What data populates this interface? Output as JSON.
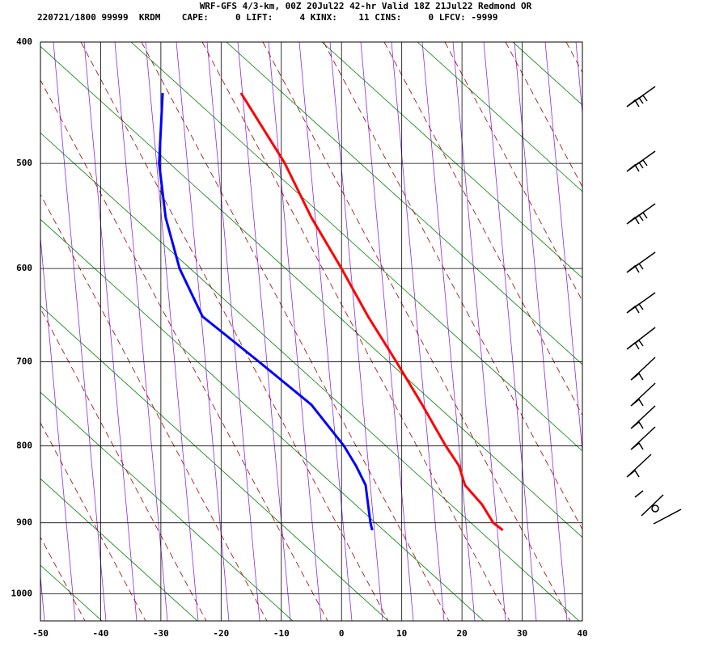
{
  "chart_data": {
    "type": "skewt",
    "title": "WRF-GFS 4/3-km, 00Z 20Jul22 42-hr Valid 18Z 21Jul22 Redmond OR",
    "subtitle": "220721/1800 99999  KRDM    CAPE:     0 LIFT:     4 KINX:    11 CINS:     0 LFCV: -9999",
    "x": [
      440,
      500,
      550,
      600,
      650,
      700,
      750,
      800,
      825,
      850,
      875,
      900,
      910
    ],
    "series": [
      {
        "color": "#ff0000",
        "values": [
          -16.7,
          -9.4,
          -5.0,
          0.0,
          4.4,
          9.1,
          13.4,
          17.3,
          19.5,
          20.5,
          23.3,
          25.2,
          26.8
        ]
      },
      {
        "color": "#0000ff",
        "values": [
          -29.7,
          -30.3,
          -29.2,
          -26.9,
          -23.1,
          -13.7,
          -5.0,
          0.4,
          2.4,
          4.0,
          4.4,
          4.8,
          5.1
        ]
      }
    ],
    "xlim": [
      -50,
      40
    ],
    "xticks": [
      -50,
      -40,
      -30,
      -20,
      -10,
      0,
      10,
      20,
      30,
      40
    ],
    "ylim": [
      400,
      1040
    ],
    "yticks": [
      400,
      500,
      600,
      700,
      800,
      900,
      1000
    ],
    "grid": true
  }
}
